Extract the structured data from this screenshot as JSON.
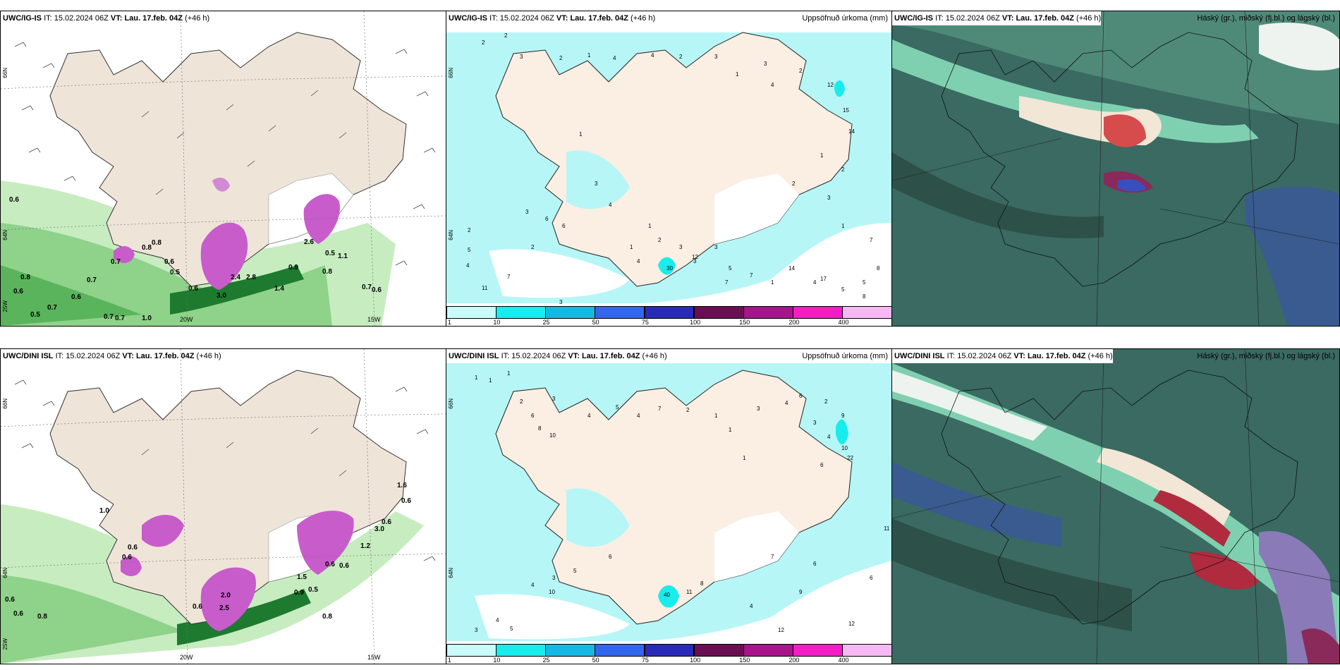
{
  "panels": [
    {
      "model": "UWC/IG-IS",
      "it_label": "IT:",
      "it": "15.02.2024 06Z",
      "vt_label": "VT:",
      "vt": "Lau. 17.feb. 04Z",
      "lead": "(+46 h)",
      "right_title": ""
    },
    {
      "model": "UWC/IG-IS",
      "it_label": "IT:",
      "it": "15.02.2024 06Z",
      "vt_label": "VT:",
      "vt": "Lau. 17.feb. 04Z",
      "lead": "(+46 h)",
      "right_title": "Uppsöfnuð úrkoma (mm)"
    },
    {
      "model": "UWC/IG-IS",
      "it_label": "IT:",
      "it": "15.02.2024 06Z",
      "vt_label": "VT:",
      "vt": "Lau. 17.feb. 04Z",
      "lead": "(+46 h)",
      "right_title": "Háský (gr.), miðský (fj.bl.) og lágský (bl.)"
    },
    {
      "model": "UWC/DINI ISL",
      "it_label": "IT:",
      "it": "15.02.2024 06Z",
      "vt_label": "VT:",
      "vt": "Lau. 17.feb. 04Z",
      "lead": "(+46 h)",
      "right_title": ""
    },
    {
      "model": "UWC/DINI ISL",
      "it_label": "IT:",
      "it": "15.02.2024 06Z",
      "vt_label": "VT:",
      "vt": "Lau. 17.feb. 04Z",
      "lead": "(+46 h)",
      "right_title": "Uppsöfnuð úrkoma (mm)"
    },
    {
      "model": "UWC/DINI ISL",
      "it_label": "IT:",
      "it": "15.02.2024 06Z",
      "vt_label": "VT:",
      "vt": "Lau. 17.feb. 04Z",
      "lead": "(+46 h)",
      "right_title": "Háský (gr.), miðský (fj.bl.) og lágský (bl.)"
    }
  ],
  "axis_labels": {
    "lat66": "66N",
    "lat64": "64N",
    "lat63": "63N",
    "lon20": "20W",
    "lon15": "15W",
    "lon25": "25W"
  },
  "colorbar": {
    "ticks": [
      "1",
      "10",
      "25",
      "50",
      "75",
      "100",
      "150",
      "200",
      "400"
    ],
    "colors": [
      "#c9fbfb",
      "#19ecec",
      "#16b9e6",
      "#3366ee",
      "#2a2ab8",
      "#6a0f52",
      "#a81489",
      "#f21ec4",
      "#f6b8f2"
    ]
  },
  "wind_values_top": [
    "0.6",
    "0.8",
    "0.7",
    "0.6",
    "0.7",
    "0.5",
    "0.7",
    "0.7",
    "1.0",
    "0.8",
    "0.6",
    "0.5",
    "0.7",
    "0.8",
    "0.6",
    "0.6",
    "3.0",
    "2.8",
    "2.4",
    "1.4",
    "0.5",
    "0.8",
    "0.7",
    "0.6",
    "1.1",
    "2.6",
    "0.9"
  ],
  "wind_values_bottom": [
    "0.6",
    "0.6",
    "0.8",
    "0.8",
    "1.0",
    "0.6",
    "0.6",
    "0.6",
    "2.5",
    "0.6",
    "0.6",
    "0.9",
    "0.5",
    "0.6",
    "0.6",
    "1.6",
    "2.0",
    "3.0",
    "1.5",
    "1.2"
  ],
  "precip_values_top": [
    "2",
    "2",
    "3",
    "2",
    "1",
    "4",
    "4",
    "2",
    "3",
    "1",
    "3",
    "2",
    "4",
    "12",
    "15",
    "14",
    "1",
    "2",
    "2",
    "3",
    "1",
    "1",
    "3",
    "4",
    "3",
    "6",
    "2",
    "5",
    "4",
    "7",
    "1",
    "2",
    "3",
    "4",
    "3",
    "5",
    "7",
    "1",
    "12",
    "3",
    "7",
    "14",
    "4",
    "5",
    "7",
    "8",
    "11",
    "17",
    "5",
    "2",
    "6",
    "3",
    "1",
    "30",
    "8"
  ],
  "precip_values_bottom": [
    "1",
    "1",
    "1",
    "2",
    "3",
    "6",
    "8",
    "10",
    "4",
    "5",
    "4",
    "7",
    "2",
    "1",
    "1",
    "1",
    "3",
    "4",
    "6",
    "3",
    "2",
    "4",
    "9",
    "6",
    "10",
    "22",
    "11",
    "12",
    "3",
    "4",
    "5",
    "4",
    "3",
    "5",
    "6",
    "10",
    "11",
    "8",
    "12",
    "7",
    "9",
    "6",
    "40",
    "4",
    "6"
  ]
}
